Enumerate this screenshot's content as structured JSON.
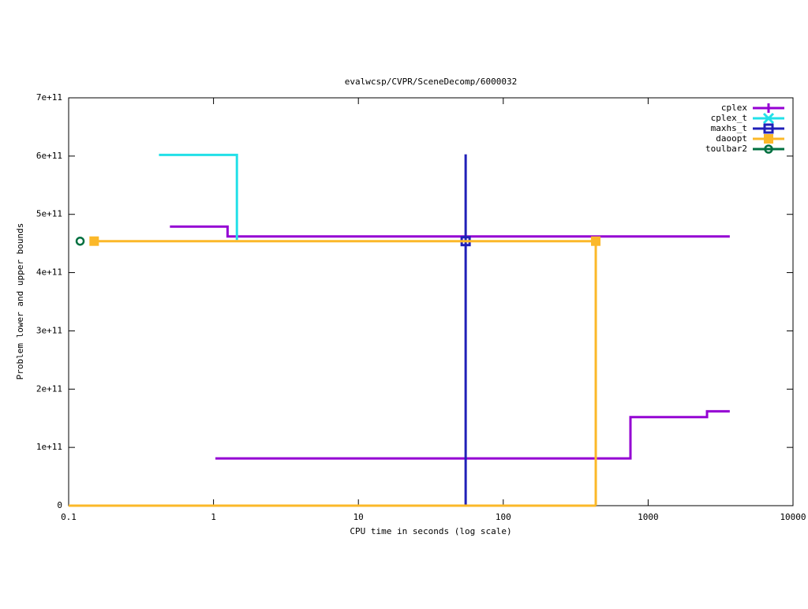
{
  "chart_data": {
    "type": "line",
    "title": "evalwcsp/CVPR/SceneDecomp/6000032",
    "x_label": "CPU time in seconds (log scale)",
    "y_label": "Problem lower and upper bounds",
    "xscale": "log",
    "xlim": [
      0.1,
      10000
    ],
    "xticks": [
      0.1,
      1,
      10,
      100,
      1000,
      10000
    ],
    "ylim": [
      0,
      700000000000
    ],
    "yticks": [
      0,
      {
        "value": 100000000000,
        "label": "1e+11"
      },
      {
        "value": 200000000000,
        "label": "2e+11"
      },
      {
        "value": 300000000000,
        "label": "3e+11"
      },
      {
        "value": 400000000000,
        "label": "4e+11"
      },
      {
        "value": 500000000000,
        "label": "5e+11"
      },
      {
        "value": 600000000000,
        "label": "6e+11"
      },
      {
        "value": 700000000000,
        "label": "7e+11"
      }
    ],
    "legend": "top-right",
    "series": [
      {
        "name": "cplex",
        "color": "#9400d3",
        "marker": "plus",
        "x": [
          0.5,
          1.25,
          1.25,
          3660,
          null,
          1.03,
          755,
          755,
          2550,
          2550,
          3660
        ],
        "values": [
          479000000000,
          479000000000,
          462000000000,
          462000000000,
          null,
          81000000000,
          81000000000,
          152000000000,
          152000000000,
          162000000000,
          162000000000
        ],
        "markers": {
          "x": [],
          "values": []
        }
      },
      {
        "name": "cplex_t",
        "color": "#22e0e8",
        "marker": "cross",
        "x": [
          0.42,
          1.45,
          1.45
        ],
        "values": [
          602000000000,
          602000000000,
          456000000000
        ],
        "markers": {
          "x": [],
          "values": []
        }
      },
      {
        "name": "maxhs_t",
        "color": "#2020b8",
        "marker": "open-square",
        "x": [
          55,
          55
        ],
        "values": [
          0,
          603000000000
        ],
        "markers": {
          "x": [
            55
          ],
          "values": [
            454000000000
          ]
        }
      },
      {
        "name": "daoopt",
        "color": "#fbb829",
        "marker": "filled-square",
        "x": [
          0.15,
          435,
          435,
          null,
          0.1,
          435
        ],
        "values": [
          454000000000,
          454000000000,
          0,
          null,
          0,
          0
        ],
        "markers": {
          "x": [
            0.15,
            435
          ],
          "values": [
            454000000000,
            454000000000
          ]
        }
      },
      {
        "name": "toulbar2",
        "color": "#007040",
        "marker": "circle",
        "x": [],
        "values": [],
        "markers": {
          "x": [
            0.12
          ],
          "values": [
            454000000000
          ]
        }
      }
    ]
  }
}
